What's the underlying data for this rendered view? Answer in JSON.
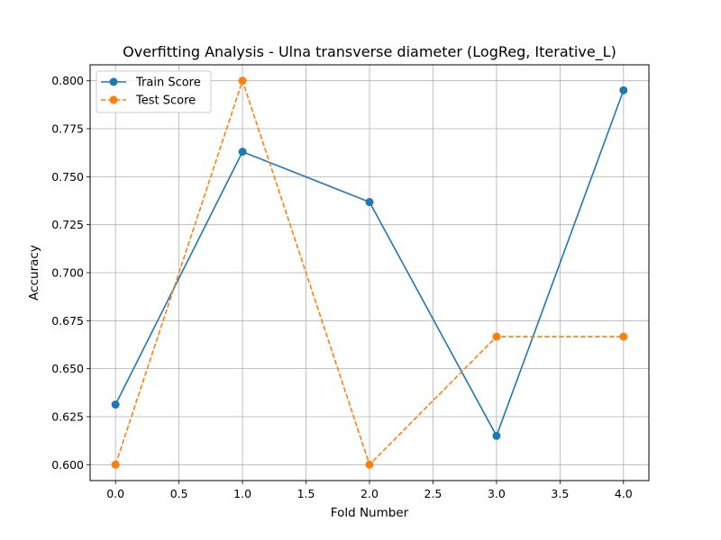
{
  "chart_data": {
    "type": "line",
    "title": "Overfitting Analysis - Ulna transverse diameter (LogReg, Iterative_L)",
    "xlabel": "Fold Number",
    "ylabel": "Accuracy",
    "xlim": [
      -0.2,
      4.2
    ],
    "ylim": [
      0.5917,
      0.8083
    ],
    "xticks": [
      0.0,
      0.5,
      1.0,
      1.5,
      2.0,
      2.5,
      3.0,
      3.5,
      4.0
    ],
    "xtick_labels": [
      "0.0",
      "0.5",
      "1.0",
      "1.5",
      "2.0",
      "2.5",
      "3.0",
      "3.5",
      "4.0"
    ],
    "yticks": [
      0.6,
      0.625,
      0.65,
      0.675,
      0.7,
      0.725,
      0.75,
      0.775,
      0.8
    ],
    "ytick_labels": [
      "0.600",
      "0.625",
      "0.650",
      "0.675",
      "0.700",
      "0.725",
      "0.750",
      "0.775",
      "0.800"
    ],
    "grid": true,
    "legend_position": "top-left",
    "x": [
      0,
      1,
      2,
      3,
      4
    ],
    "series": [
      {
        "name": "Train Score",
        "values": [
          0.6313,
          0.763,
          0.7368,
          0.615,
          0.795
        ],
        "color": "#1f77b4",
        "style": "solid",
        "marker": "circle"
      },
      {
        "name": "Test Score",
        "values": [
          0.6,
          0.8,
          0.6,
          0.6667,
          0.6667
        ],
        "color": "#ff7f0e",
        "style": "dashed",
        "marker": "circle"
      }
    ]
  }
}
